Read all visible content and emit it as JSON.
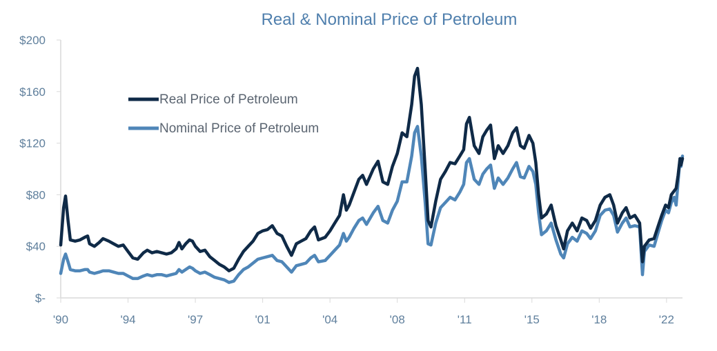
{
  "chart_data": {
    "type": "line",
    "title": "Real & Nominal Price of Petroleum",
    "xlabel": "",
    "ylabel": "",
    "xlim": [
      1990.0,
      2022.33
    ],
    "ylim": [
      0,
      200
    ],
    "y_ticks": [
      {
        "value": 0,
        "label": "$-"
      },
      {
        "value": 40,
        "label": "$40"
      },
      {
        "value": 80,
        "label": "$80"
      },
      {
        "value": 120,
        "label": "$120"
      },
      {
        "value": 160,
        "label": "$160"
      },
      {
        "value": 200,
        "label": "$200"
      }
    ],
    "x_ticks": [
      {
        "value": 1990,
        "label": "'90"
      },
      {
        "value": 1993.5,
        "label": "'94"
      },
      {
        "value": 1997,
        "label": "'97"
      },
      {
        "value": 2000.5,
        "label": "'01"
      },
      {
        "value": 2004,
        "label": "'04"
      },
      {
        "value": 2007.5,
        "label": "'08"
      },
      {
        "value": 2011,
        "label": "'11"
      },
      {
        "value": 2014.5,
        "label": "'15"
      },
      {
        "value": 2018,
        "label": "'18"
      },
      {
        "value": 2021.5,
        "label": "'22"
      }
    ],
    "grid": false,
    "legend": "top-left",
    "series": [
      {
        "name": "Real Price of Petroleum",
        "color": "#0f2a47",
        "points": [
          [
            1990.0,
            41
          ],
          [
            1990.15,
            70
          ],
          [
            1990.25,
            79
          ],
          [
            1990.38,
            60
          ],
          [
            1990.5,
            45
          ],
          [
            1990.75,
            44
          ],
          [
            1991.0,
            45
          ],
          [
            1991.25,
            47
          ],
          [
            1991.4,
            48
          ],
          [
            1991.5,
            42
          ],
          [
            1991.75,
            40
          ],
          [
            1992.0,
            43
          ],
          [
            1992.2,
            46
          ],
          [
            1992.5,
            44
          ],
          [
            1992.75,
            42
          ],
          [
            1993.0,
            40
          ],
          [
            1993.25,
            41
          ],
          [
            1993.5,
            36
          ],
          [
            1993.75,
            31
          ],
          [
            1994.0,
            30
          ],
          [
            1994.3,
            35
          ],
          [
            1994.5,
            37
          ],
          [
            1994.75,
            35
          ],
          [
            1995.0,
            36
          ],
          [
            1995.25,
            35
          ],
          [
            1995.5,
            34
          ],
          [
            1995.75,
            35
          ],
          [
            1996.0,
            38
          ],
          [
            1996.15,
            43
          ],
          [
            1996.3,
            38
          ],
          [
            1996.5,
            42
          ],
          [
            1996.7,
            45
          ],
          [
            1996.85,
            44
          ],
          [
            1997.0,
            40
          ],
          [
            1997.25,
            36
          ],
          [
            1997.5,
            37
          ],
          [
            1997.75,
            32
          ],
          [
            1998.0,
            29
          ],
          [
            1998.25,
            26
          ],
          [
            1998.5,
            24
          ],
          [
            1998.75,
            21
          ],
          [
            1999.0,
            23
          ],
          [
            1999.25,
            30
          ],
          [
            1999.5,
            36
          ],
          [
            1999.75,
            40
          ],
          [
            2000.0,
            44
          ],
          [
            2000.25,
            50
          ],
          [
            2000.5,
            52
          ],
          [
            2000.75,
            53
          ],
          [
            2001.0,
            56
          ],
          [
            2001.25,
            50
          ],
          [
            2001.5,
            48
          ],
          [
            2001.75,
            40
          ],
          [
            2002.0,
            33
          ],
          [
            2002.25,
            42
          ],
          [
            2002.5,
            44
          ],
          [
            2002.75,
            46
          ],
          [
            2003.0,
            52
          ],
          [
            2003.2,
            55
          ],
          [
            2003.4,
            45
          ],
          [
            2003.75,
            47
          ],
          [
            2004.0,
            52
          ],
          [
            2004.25,
            58
          ],
          [
            2004.5,
            64
          ],
          [
            2004.7,
            80
          ],
          [
            2004.85,
            68
          ],
          [
            2005.0,
            72
          ],
          [
            2005.25,
            82
          ],
          [
            2005.5,
            92
          ],
          [
            2005.7,
            95
          ],
          [
            2005.9,
            88
          ],
          [
            2006.25,
            100
          ],
          [
            2006.5,
            106
          ],
          [
            2006.75,
            90
          ],
          [
            2007.0,
            88
          ],
          [
            2007.25,
            102
          ],
          [
            2007.5,
            112
          ],
          [
            2007.75,
            128
          ],
          [
            2008.0,
            125
          ],
          [
            2008.25,
            150
          ],
          [
            2008.4,
            172
          ],
          [
            2008.55,
            178
          ],
          [
            2008.75,
            150
          ],
          [
            2008.95,
            100
          ],
          [
            2009.1,
            60
          ],
          [
            2009.25,
            55
          ],
          [
            2009.5,
            75
          ],
          [
            2009.75,
            92
          ],
          [
            2010.0,
            98
          ],
          [
            2010.25,
            105
          ],
          [
            2010.5,
            104
          ],
          [
            2010.75,
            110
          ],
          [
            2010.95,
            115
          ],
          [
            2011.1,
            135
          ],
          [
            2011.25,
            140
          ],
          [
            2011.5,
            118
          ],
          [
            2011.75,
            112
          ],
          [
            2011.95,
            125
          ],
          [
            2012.15,
            130
          ],
          [
            2012.35,
            134
          ],
          [
            2012.55,
            108
          ],
          [
            2012.75,
            118
          ],
          [
            2013.0,
            112
          ],
          [
            2013.25,
            118
          ],
          [
            2013.5,
            128
          ],
          [
            2013.7,
            132
          ],
          [
            2013.9,
            118
          ],
          [
            2014.1,
            116
          ],
          [
            2014.35,
            126
          ],
          [
            2014.55,
            120
          ],
          [
            2014.7,
            105
          ],
          [
            2014.85,
            80
          ],
          [
            2015.0,
            62
          ],
          [
            2015.25,
            65
          ],
          [
            2015.5,
            72
          ],
          [
            2015.75,
            56
          ],
          [
            2016.0,
            45
          ],
          [
            2016.15,
            38
          ],
          [
            2016.35,
            52
          ],
          [
            2016.6,
            58
          ],
          [
            2016.85,
            52
          ],
          [
            2017.1,
            62
          ],
          [
            2017.35,
            60
          ],
          [
            2017.55,
            54
          ],
          [
            2017.8,
            60
          ],
          [
            2018.05,
            72
          ],
          [
            2018.3,
            78
          ],
          [
            2018.55,
            80
          ],
          [
            2018.75,
            72
          ],
          [
            2018.95,
            58
          ],
          [
            2019.2,
            66
          ],
          [
            2019.4,
            70
          ],
          [
            2019.6,
            62
          ],
          [
            2019.85,
            64
          ],
          [
            2020.1,
            58
          ],
          [
            2020.25,
            28
          ],
          [
            2020.35,
            40
          ],
          [
            2020.6,
            45
          ],
          [
            2020.85,
            46
          ],
          [
            2021.05,
            55
          ],
          [
            2021.25,
            64
          ],
          [
            2021.45,
            72
          ],
          [
            2021.6,
            70
          ],
          [
            2021.75,
            80
          ],
          [
            2021.9,
            83
          ],
          [
            2022.0,
            85
          ],
          [
            2022.1,
            95
          ],
          [
            2022.2,
            108
          ],
          [
            2022.25,
            103
          ],
          [
            2022.33,
            108
          ]
        ]
      },
      {
        "name": "Nominal Price of Petroleum",
        "color": "#4f86b8",
        "points": [
          [
            1990.0,
            19
          ],
          [
            1990.15,
            30
          ],
          [
            1990.25,
            34
          ],
          [
            1990.38,
            28
          ],
          [
            1990.5,
            22
          ],
          [
            1990.75,
            21
          ],
          [
            1991.0,
            21
          ],
          [
            1991.25,
            22
          ],
          [
            1991.4,
            22
          ],
          [
            1991.5,
            20
          ],
          [
            1991.75,
            19
          ],
          [
            1992.0,
            20
          ],
          [
            1992.2,
            21
          ],
          [
            1992.5,
            21
          ],
          [
            1992.75,
            20
          ],
          [
            1993.0,
            19
          ],
          [
            1993.25,
            19
          ],
          [
            1993.5,
            17
          ],
          [
            1993.75,
            15
          ],
          [
            1994.0,
            15
          ],
          [
            1994.3,
            17
          ],
          [
            1994.5,
            18
          ],
          [
            1994.75,
            17
          ],
          [
            1995.0,
            18
          ],
          [
            1995.25,
            18
          ],
          [
            1995.5,
            17
          ],
          [
            1995.75,
            18
          ],
          [
            1996.0,
            19
          ],
          [
            1996.15,
            22
          ],
          [
            1996.3,
            20
          ],
          [
            1996.5,
            22
          ],
          [
            1996.7,
            24
          ],
          [
            1996.85,
            23
          ],
          [
            1997.0,
            21
          ],
          [
            1997.25,
            19
          ],
          [
            1997.5,
            20
          ],
          [
            1997.75,
            18
          ],
          [
            1998.0,
            16
          ],
          [
            1998.25,
            15
          ],
          [
            1998.5,
            14
          ],
          [
            1998.75,
            12
          ],
          [
            1999.0,
            13
          ],
          [
            1999.25,
            18
          ],
          [
            1999.5,
            22
          ],
          [
            1999.75,
            24
          ],
          [
            2000.0,
            27
          ],
          [
            2000.25,
            30
          ],
          [
            2000.5,
            31
          ],
          [
            2000.75,
            32
          ],
          [
            2001.0,
            33
          ],
          [
            2001.25,
            29
          ],
          [
            2001.5,
            28
          ],
          [
            2001.75,
            24
          ],
          [
            2002.0,
            20
          ],
          [
            2002.25,
            25
          ],
          [
            2002.5,
            26
          ],
          [
            2002.75,
            27
          ],
          [
            2003.0,
            31
          ],
          [
            2003.2,
            33
          ],
          [
            2003.4,
            28
          ],
          [
            2003.75,
            29
          ],
          [
            2004.0,
            33
          ],
          [
            2004.25,
            37
          ],
          [
            2004.5,
            41
          ],
          [
            2004.7,
            50
          ],
          [
            2004.85,
            44
          ],
          [
            2005.0,
            47
          ],
          [
            2005.25,
            54
          ],
          [
            2005.5,
            60
          ],
          [
            2005.7,
            62
          ],
          [
            2005.9,
            57
          ],
          [
            2006.25,
            66
          ],
          [
            2006.5,
            71
          ],
          [
            2006.75,
            60
          ],
          [
            2007.0,
            58
          ],
          [
            2007.25,
            68
          ],
          [
            2007.5,
            75
          ],
          [
            2007.75,
            90
          ],
          [
            2008.0,
            90
          ],
          [
            2008.25,
            110
          ],
          [
            2008.4,
            128
          ],
          [
            2008.55,
            133
          ],
          [
            2008.75,
            110
          ],
          [
            2008.95,
            74
          ],
          [
            2009.1,
            42
          ],
          [
            2009.25,
            41
          ],
          [
            2009.5,
            58
          ],
          [
            2009.75,
            70
          ],
          [
            2010.0,
            74
          ],
          [
            2010.25,
            78
          ],
          [
            2010.5,
            76
          ],
          [
            2010.75,
            82
          ],
          [
            2010.95,
            88
          ],
          [
            2011.1,
            105
          ],
          [
            2011.25,
            108
          ],
          [
            2011.5,
            92
          ],
          [
            2011.75,
            88
          ],
          [
            2011.95,
            96
          ],
          [
            2012.15,
            100
          ],
          [
            2012.35,
            103
          ],
          [
            2012.55,
            85
          ],
          [
            2012.75,
            93
          ],
          [
            2013.0,
            88
          ],
          [
            2013.25,
            93
          ],
          [
            2013.5,
            100
          ],
          [
            2013.7,
            105
          ],
          [
            2013.9,
            94
          ],
          [
            2014.1,
            93
          ],
          [
            2014.35,
            102
          ],
          [
            2014.55,
            98
          ],
          [
            2014.7,
            88
          ],
          [
            2014.85,
            66
          ],
          [
            2015.0,
            49
          ],
          [
            2015.25,
            52
          ],
          [
            2015.5,
            58
          ],
          [
            2015.75,
            45
          ],
          [
            2016.0,
            34
          ],
          [
            2016.15,
            31
          ],
          [
            2016.35,
            42
          ],
          [
            2016.6,
            47
          ],
          [
            2016.85,
            44
          ],
          [
            2017.1,
            52
          ],
          [
            2017.35,
            50
          ],
          [
            2017.55,
            46
          ],
          [
            2017.8,
            52
          ],
          [
            2018.05,
            64
          ],
          [
            2018.3,
            68
          ],
          [
            2018.55,
            69
          ],
          [
            2018.75,
            64
          ],
          [
            2018.95,
            51
          ],
          [
            2019.2,
            58
          ],
          [
            2019.4,
            62
          ],
          [
            2019.6,
            55
          ],
          [
            2019.85,
            56
          ],
          [
            2020.1,
            55
          ],
          [
            2020.25,
            18
          ],
          [
            2020.35,
            36
          ],
          [
            2020.6,
            41
          ],
          [
            2020.85,
            40
          ],
          [
            2021.05,
            50
          ],
          [
            2021.25,
            60
          ],
          [
            2021.45,
            68
          ],
          [
            2021.6,
            66
          ],
          [
            2021.75,
            74
          ],
          [
            2021.9,
            78
          ],
          [
            2022.0,
            72
          ],
          [
            2022.1,
            90
          ],
          [
            2022.2,
            108
          ],
          [
            2022.25,
            102
          ],
          [
            2022.33,
            110
          ]
        ]
      }
    ]
  }
}
